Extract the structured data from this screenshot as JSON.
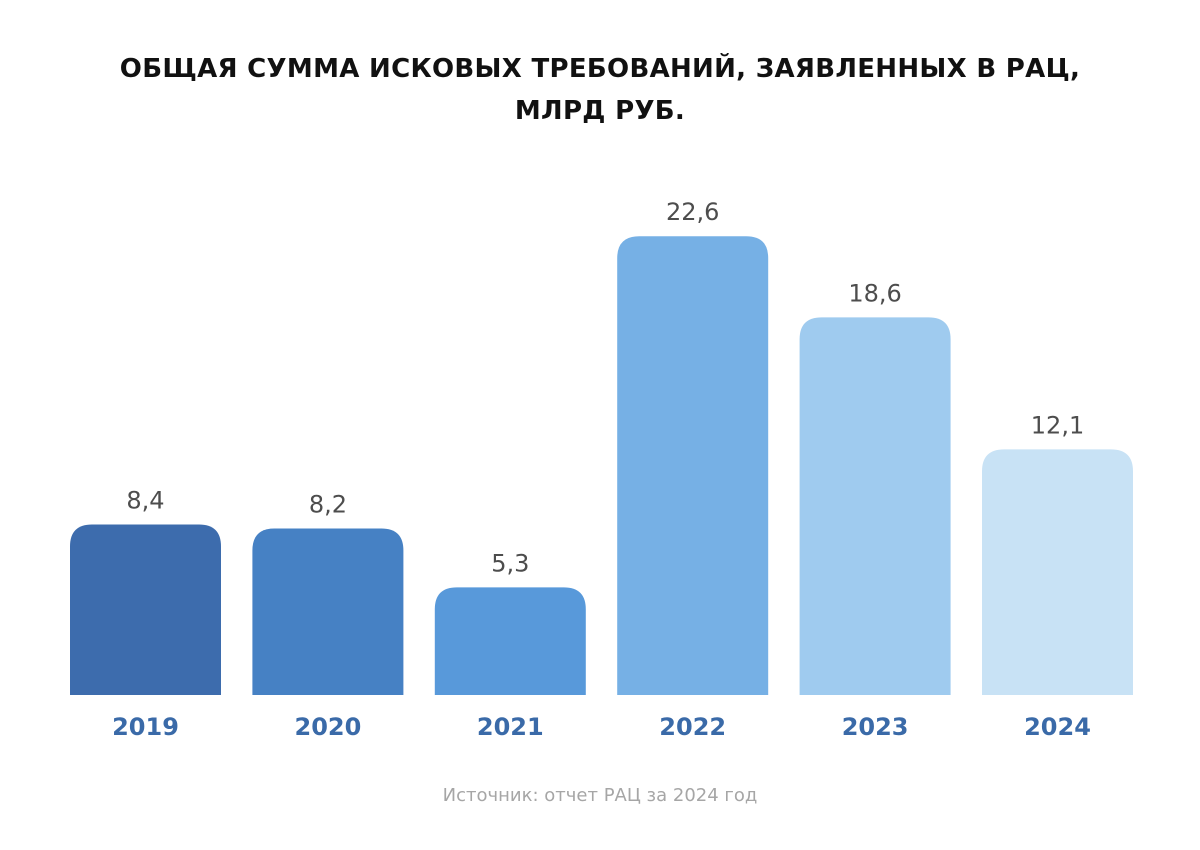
{
  "title": {
    "line1": "ОБЩАЯ СУММА ИСКОВЫХ ТРЕБОВАНИЙ, ЗАЯВЛЕННЫХ В РАЦ,",
    "line2": "МЛРД РУБ."
  },
  "chart_data": {
    "type": "bar",
    "title": "ОБЩАЯ СУММА ИСКОВЫХ ТРЕБОВАНИЙ, ЗАЯВЛЕННЫХ В РАЦ, МЛРД РУБ.",
    "categories": [
      "2019",
      "2020",
      "2021",
      "2022",
      "2023",
      "2024"
    ],
    "values": [
      8.4,
      8.2,
      5.3,
      22.6,
      18.6,
      12.1
    ],
    "value_labels": [
      "8,4",
      "8,2",
      "5,3",
      "22,6",
      "18,6",
      "12,1"
    ],
    "bar_colors": [
      "#3d6cad",
      "#4681c4",
      "#5899da",
      "#76b0e5",
      "#9fcbef",
      "#c8e2f5"
    ],
    "category_label_color": "#3a6aa8",
    "value_label_color": "#4d4d4d",
    "xlabel": "",
    "ylabel": "",
    "grid": false,
    "legend": "none"
  },
  "source": "Источник: отчет РАЦ за 2024 год"
}
